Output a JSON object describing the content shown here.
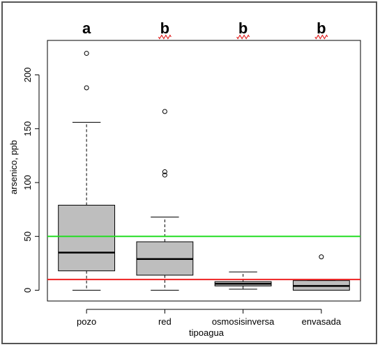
{
  "chart_data": {
    "type": "box",
    "xlabel": "tipoagua",
    "ylabel": "arsenico, ppb",
    "ylim": [
      -10,
      232
    ],
    "yticks": [
      0,
      50,
      100,
      150,
      200
    ],
    "categories": [
      "pozo",
      "red",
      "osmosisinversa",
      "envasada"
    ],
    "group_letters": [
      "a",
      "b",
      "b",
      "b"
    ],
    "boxes": [
      {
        "category": "pozo",
        "whisker_low": 0,
        "q1": 18,
        "median": 35,
        "q3": 79,
        "whisker_high": 156,
        "outliers": [
          188,
          220
        ]
      },
      {
        "category": "red",
        "whisker_low": 0,
        "q1": 14,
        "median": 29,
        "q3": 45,
        "whisker_high": 68,
        "outliers": [
          107,
          110,
          166
        ]
      },
      {
        "category": "osmosisinversa",
        "whisker_low": 1,
        "q1": 4,
        "median": 6,
        "q3": 8,
        "whisker_high": 17,
        "outliers": []
      },
      {
        "category": "envasada",
        "whisker_low": 0,
        "q1": 0,
        "median": 4,
        "q3": 9,
        "whisker_high": 9,
        "outliers": [
          31
        ]
      }
    ],
    "reference_lines": [
      {
        "y": 50,
        "color": "#22dd22"
      },
      {
        "y": 10,
        "color": "#ee2222"
      }
    ],
    "box_fill": "#bebebe",
    "grid": false
  }
}
